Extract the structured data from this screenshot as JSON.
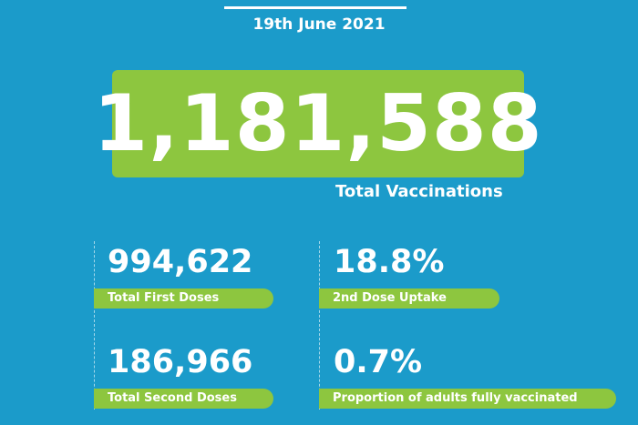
{
  "date": "19th June 2021",
  "total": {
    "value": "1,181,588",
    "label": "Total Vaccinations"
  },
  "stats": [
    {
      "value": "994,622",
      "label": "Total First Doses"
    },
    {
      "value": "18.8%",
      "label": "2nd Dose Uptake"
    },
    {
      "value": "186,966",
      "label": "Total Second Doses"
    },
    {
      "value": "0.7%",
      "label": "Proportion of adults fully vaccinated"
    }
  ],
  "colors": {
    "background": "#1b9bca",
    "accent": "#8dc63f"
  }
}
